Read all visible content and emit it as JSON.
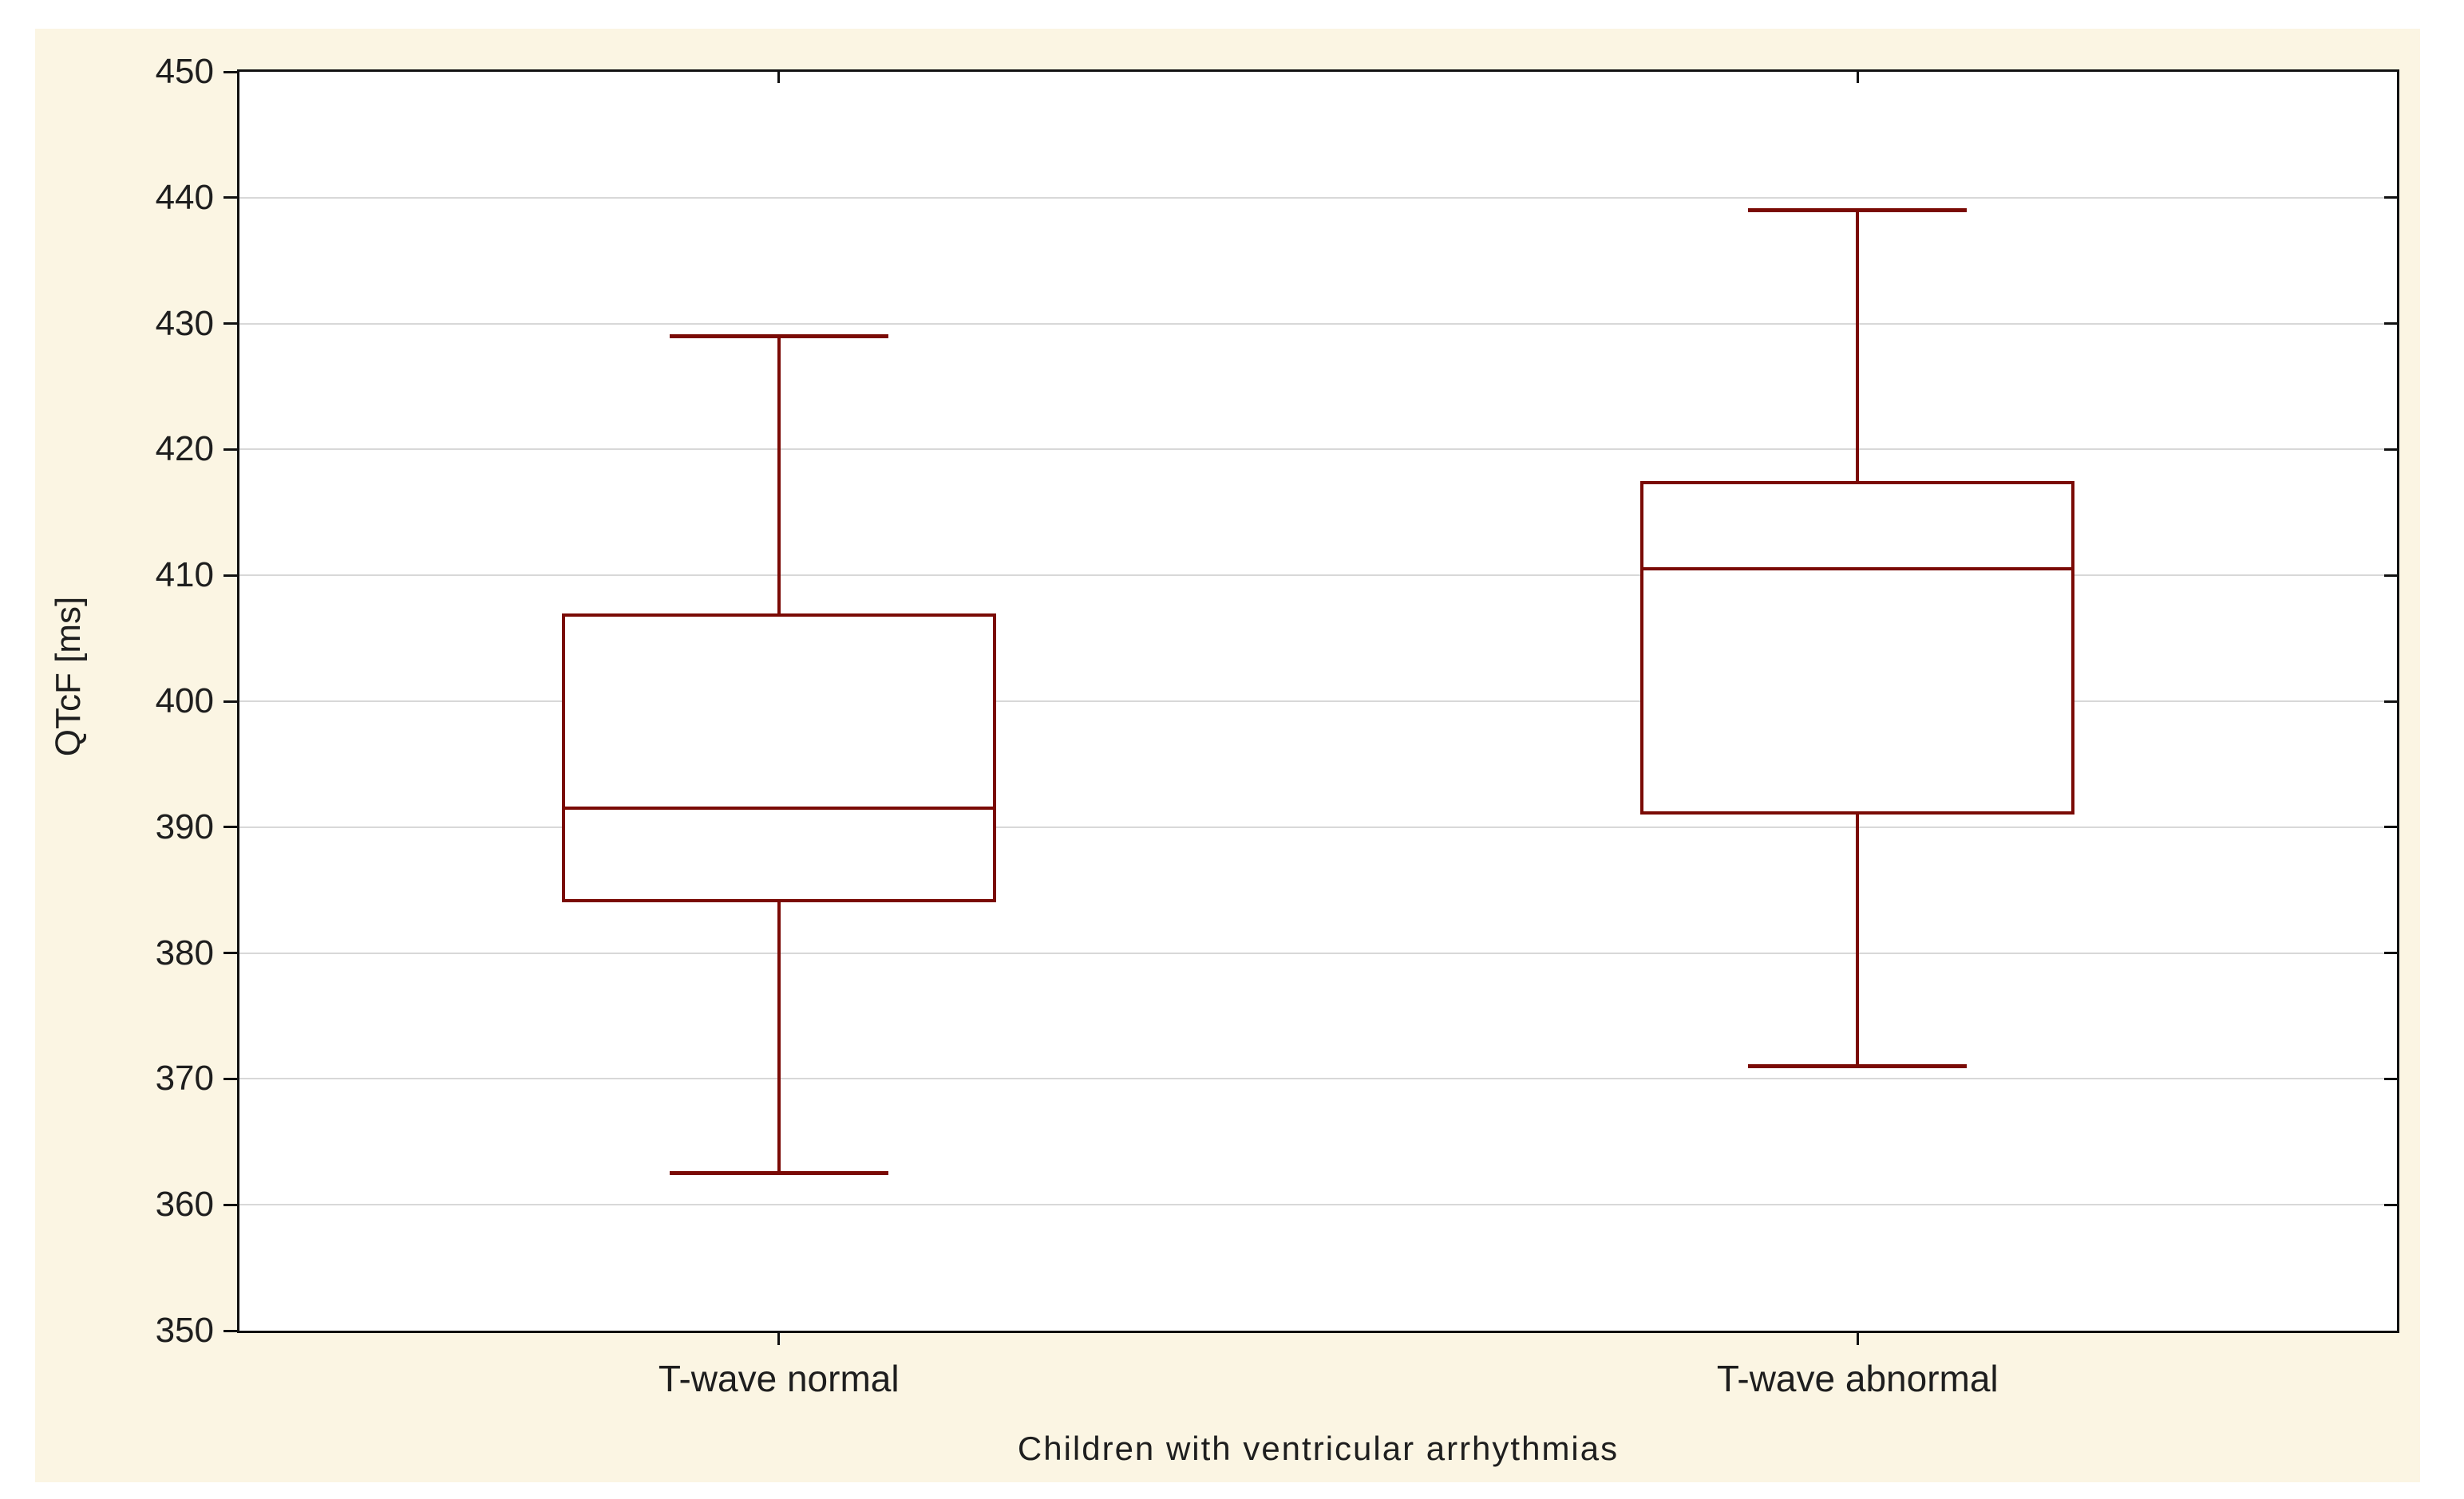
{
  "figure": {
    "canvas_bg": "#fbf5e3",
    "plot_bg": "#ffffff",
    "frame_color": "#111111",
    "grid_color": "#d8d8d8",
    "box_color": "#7a0a05",
    "text_color": "#1e1e1e"
  },
  "chart_data": {
    "type": "box",
    "title": "",
    "xlabel": "Children with ventricular arrhythmias",
    "ylabel": "QTcF [ms]",
    "ylim": [
      350,
      450
    ],
    "ytick_step": 10,
    "ytick_labels": [
      "350",
      "360",
      "370",
      "380",
      "390",
      "400",
      "410",
      "420",
      "430",
      "440",
      "450"
    ],
    "grid": "horizontal",
    "legend": "none",
    "categories": [
      "T-wave normal",
      "T-wave abnormal"
    ],
    "series": [
      {
        "name": "T-wave normal",
        "whisker_low": 362.5,
        "q1": 384,
        "median": 391.5,
        "q3": 407,
        "whisker_high": 429
      },
      {
        "name": "T-wave abnormal",
        "whisker_low": 371,
        "q1": 391,
        "median": 410.5,
        "q3": 417.5,
        "whisker_high": 439
      }
    ]
  }
}
